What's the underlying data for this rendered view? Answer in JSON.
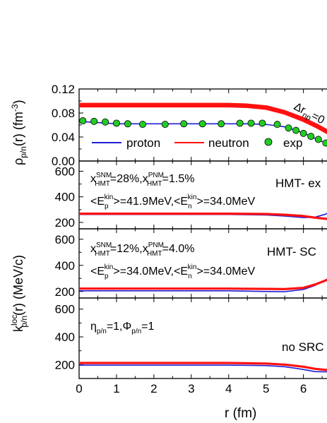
{
  "chart_data": [
    {
      "type": "line",
      "panel": "density",
      "ylabel_main": "ρ",
      "ylabel_sub": "p/n",
      "ylabel_rest": "(r) (fm",
      "ylabel_sup": "-3",
      "ylabel_close": ")",
      "yticks": [
        "0.00",
        "0.04",
        "0.08",
        "0.12"
      ],
      "ylim": [
        0,
        0.12
      ],
      "xlim": [
        0,
        6.8
      ],
      "annotation": {
        "delta": "Δr",
        "sub": "np",
        "rest": "=0"
      },
      "legend": [
        {
          "name": "proton",
          "color": "#1f1fd6"
        },
        {
          "name": "neutron",
          "color": "#ff1010"
        },
        {
          "name": "exp",
          "color": "#22cc22"
        }
      ],
      "series": [
        {
          "name": "proton",
          "color": "#1f1fd6",
          "x": [
            0,
            0.5,
            1,
            2,
            3,
            4,
            4.5,
            5,
            5.5,
            6,
            6.4,
            6.8
          ],
          "y": [
            0.066,
            0.064,
            0.062,
            0.062,
            0.062,
            0.062,
            0.062,
            0.061,
            0.057,
            0.047,
            0.035,
            0.025
          ]
        },
        {
          "name": "neutron",
          "color": "#ff1010",
          "x": [
            0,
            1,
            2,
            3,
            4,
            4.5,
            5,
            5.5,
            6,
            6.4,
            6.8
          ],
          "y": [
            0.093,
            0.093,
            0.093,
            0.093,
            0.093,
            0.092,
            0.089,
            0.081,
            0.069,
            0.057,
            0.043
          ]
        },
        {
          "name": "exp",
          "color": "#22cc22",
          "x": [
            0.1,
            0.4,
            0.7,
            1.0,
            1.3,
            1.7,
            2.3,
            2.8,
            3.3,
            3.8,
            4.3,
            4.6,
            4.9,
            5.3,
            5.6,
            5.8,
            6.0,
            6.2,
            6.4,
            6.6
          ],
          "y": [
            0.067,
            0.066,
            0.065,
            0.063,
            0.062,
            0.061,
            0.061,
            0.062,
            0.062,
            0.062,
            0.063,
            0.063,
            0.063,
            0.061,
            0.055,
            0.051,
            0.046,
            0.041,
            0.036,
            0.03
          ]
        }
      ]
    },
    {
      "type": "line",
      "panel": "HMT-exp",
      "yticks": [
        "200",
        "400",
        "600"
      ],
      "ylim": [
        150,
        680
      ],
      "label": "HMT- ex",
      "line1": {
        "x": "x",
        "sup1": "SNM",
        "sub1": "HMT",
        "v1": "=28%,x",
        "sup2": "PNM",
        "sub2": "HMT",
        "v2": "=1.5%"
      },
      "line2": {
        "a": "<E",
        "sub1": "p",
        "sup1": "kin",
        "b": ">=41.9MeV,<E",
        "sub2": "n",
        "sup2": "kin",
        "c": ">=34.0MeV"
      },
      "series": [
        {
          "name": "proton",
          "color": "#1f1fd6",
          "x": [
            0,
            1,
            2,
            3,
            4,
            5,
            5.5,
            6,
            6.3,
            6.6,
            6.8
          ],
          "y": [
            262,
            262,
            262,
            262,
            262,
            258,
            250,
            238,
            240,
            265,
            300
          ]
        },
        {
          "name": "neutron",
          "color": "#ff1010",
          "x": [
            0,
            1,
            2,
            3,
            4,
            5,
            5.5,
            6,
            6.3,
            6.6,
            6.8
          ],
          "y": [
            268,
            268,
            268,
            268,
            268,
            266,
            260,
            250,
            238,
            228,
            225
          ]
        }
      ]
    },
    {
      "type": "line",
      "panel": "HMT-SRC",
      "yticks": [
        "200",
        "400",
        "600"
      ],
      "ylim": [
        150,
        680
      ],
      "label": "HMT- SC",
      "line1": {
        "x": "x",
        "sup1": "SNM",
        "sub1": "HMT",
        "v1": "=12%,x",
        "sup2": "PNM",
        "sub2": "HMT",
        "v2": "=4.0%"
      },
      "line2": {
        "a": "<E",
        "sub1": "p",
        "sup1": "kin",
        "b": ">=34.0MeV,<E",
        "sub2": "n",
        "sup2": "kin",
        "c": ">=34.0MeV"
      },
      "series": [
        {
          "name": "proton",
          "color": "#1f1fd6",
          "x": [
            0,
            1,
            2,
            3,
            4,
            5,
            5.5,
            6,
            6.3,
            6.6,
            6.8
          ],
          "y": [
            205,
            205,
            205,
            205,
            205,
            200,
            198,
            215,
            245,
            290,
            320
          ]
        },
        {
          "name": "neutron",
          "color": "#ff1010",
          "x": [
            0,
            1,
            2,
            3,
            4,
            5,
            5.5,
            6,
            6.3,
            6.6,
            6.8
          ],
          "y": [
            222,
            222,
            222,
            222,
            222,
            220,
            218,
            228,
            252,
            285,
            305
          ]
        }
      ]
    },
    {
      "type": "line",
      "panel": "noSRC",
      "yticks": [
        "200",
        "400",
        "600"
      ],
      "ylim": [
        100,
        680
      ],
      "label": "no SRC",
      "xlabel": "r (fm)",
      "xticks": [
        "0",
        "1",
        "2",
        "3",
        "4",
        "5",
        "6"
      ],
      "line1": {
        "eta": "η",
        "sub1": "p/n",
        "eqa": "=1,Φ",
        "sub2": "p/n",
        "eqb": "=1"
      },
      "ylabel_main": "k",
      "ylabel_sup": "loc",
      "ylabel_sub": "p/n",
      "ylabel_rest": "(r) (MeV/c)",
      "series": [
        {
          "name": "proton",
          "color": "#1f1fd6",
          "x": [
            0,
            1,
            2,
            3,
            4,
            5,
            5.5,
            6,
            6.3,
            6.6,
            6.8
          ],
          "y": [
            196,
            196,
            196,
            196,
            196,
            193,
            185,
            165,
            150,
            148,
            155
          ]
        },
        {
          "name": "neutron",
          "color": "#ff1010",
          "x": [
            0,
            1,
            2,
            3,
            4,
            5,
            5.5,
            6,
            6.3,
            6.6,
            6.8
          ],
          "y": [
            212,
            212,
            212,
            212,
            212,
            208,
            200,
            185,
            170,
            162,
            165
          ]
        }
      ]
    }
  ]
}
